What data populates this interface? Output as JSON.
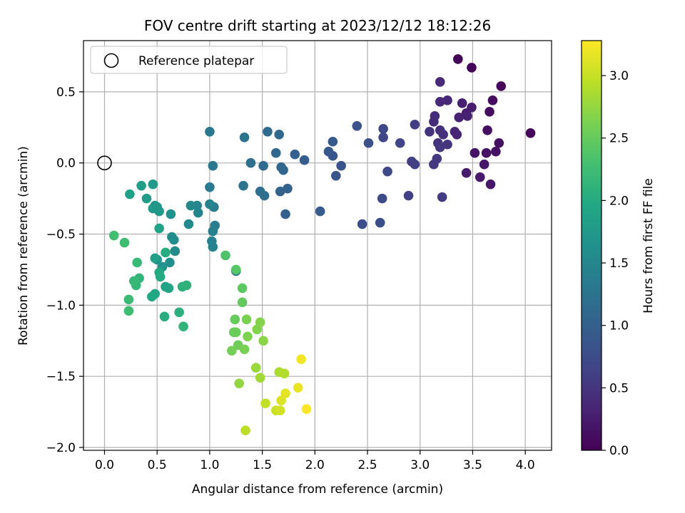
{
  "chart_data": {
    "type": "scatter",
    "title": "FOV centre drift starting at 2023/12/12 18:12:26",
    "xlabel": "Angular distance from reference (arcmin)",
    "ylabel": "Rotation from reference (arcmin)",
    "colorbar_label": "Hours from first FF file",
    "colormap": "viridis",
    "xlim": [
      -0.2,
      4.25
    ],
    "ylim": [
      -2.02,
      0.86
    ],
    "xticks": [
      "0.0",
      "0.5",
      "1.0",
      "1.5",
      "2.0",
      "2.5",
      "3.0",
      "3.5",
      "4.0"
    ],
    "xtick_values": [
      0,
      0.5,
      1,
      1.5,
      2,
      2.5,
      3,
      3.5,
      4
    ],
    "yticks": [
      "−2.0",
      "−1.5",
      "−1.0",
      "−0.5",
      "0.0",
      "0.5"
    ],
    "ytick_values": [
      -2,
      -1.5,
      -1,
      -0.5,
      0,
      0.5
    ],
    "cticks": [
      "0.0",
      "0.5",
      "1.0",
      "1.5",
      "2.0",
      "2.5",
      "3.0"
    ],
    "ctick_values": [
      0,
      0.5,
      1,
      1.5,
      2,
      2.5,
      3
    ],
    "clim": [
      0,
      3.28
    ],
    "grid": true,
    "legend": {
      "position": "top-left",
      "entries": [
        "Reference platepar"
      ]
    },
    "reference_point": {
      "x": 0,
      "y": 0
    },
    "points": [
      {
        "x": 3.36,
        "y": 0.73,
        "c": 0.02
      },
      {
        "x": 3.49,
        "y": 0.67,
        "c": 0.04
      },
      {
        "x": 4.05,
        "y": 0.21,
        "c": 0.05
      },
      {
        "x": 3.77,
        "y": 0.54,
        "c": 0.07
      },
      {
        "x": 3.69,
        "y": 0.44,
        "c": 0.09
      },
      {
        "x": 3.66,
        "y": 0.36,
        "c": 0.11
      },
      {
        "x": 3.64,
        "y": 0.23,
        "c": 0.12
      },
      {
        "x": 3.75,
        "y": 0.14,
        "c": 0.14
      },
      {
        "x": 3.72,
        "y": 0.08,
        "c": 0.15
      },
      {
        "x": 3.63,
        "y": 0.07,
        "c": 0.17
      },
      {
        "x": 3.52,
        "y": 0.07,
        "c": 0.18
      },
      {
        "x": 3.61,
        "y": -0.01,
        "c": 0.2
      },
      {
        "x": 3.67,
        "y": -0.15,
        "c": 0.21
      },
      {
        "x": 3.57,
        "y": -0.1,
        "c": 0.23
      },
      {
        "x": 3.44,
        "y": -0.07,
        "c": 0.24
      },
      {
        "x": 3.49,
        "y": 0.39,
        "c": 0.26
      },
      {
        "x": 3.44,
        "y": 0.35,
        "c": 0.27
      },
      {
        "x": 3.4,
        "y": 0.42,
        "c": 0.29
      },
      {
        "x": 3.45,
        "y": 0.33,
        "c": 0.3
      },
      {
        "x": 3.37,
        "y": 0.32,
        "c": 0.32
      },
      {
        "x": 3.35,
        "y": 0.2,
        "c": 0.33
      },
      {
        "x": 3.33,
        "y": 0.22,
        "c": 0.35
      },
      {
        "x": 3.26,
        "y": 0.44,
        "c": 0.36
      },
      {
        "x": 3.19,
        "y": 0.43,
        "c": 0.38
      },
      {
        "x": 3.19,
        "y": 0.57,
        "c": 0.39
      },
      {
        "x": 3.14,
        "y": 0.33,
        "c": 0.41
      },
      {
        "x": 3.13,
        "y": 0.29,
        "c": 0.42
      },
      {
        "x": 3.19,
        "y": 0.23,
        "c": 0.44
      },
      {
        "x": 3.22,
        "y": 0.2,
        "c": 0.45
      },
      {
        "x": 3.09,
        "y": 0.22,
        "c": 0.47
      },
      {
        "x": 3.17,
        "y": 0.14,
        "c": 0.48
      },
      {
        "x": 3.26,
        "y": 0.13,
        "c": 0.5
      },
      {
        "x": 3.19,
        "y": 0.11,
        "c": 0.51
      },
      {
        "x": 3.16,
        "y": 0.03,
        "c": 0.53
      },
      {
        "x": 3.13,
        "y": -0.01,
        "c": 0.54
      },
      {
        "x": 3.21,
        "y": -0.24,
        "c": 0.56
      },
      {
        "x": 2.95,
        "y": 0.27,
        "c": 0.58
      },
      {
        "x": 2.92,
        "y": 0.01,
        "c": 0.6
      },
      {
        "x": 2.95,
        "y": -0.01,
        "c": 0.62
      },
      {
        "x": 2.89,
        "y": -0.23,
        "c": 0.64
      },
      {
        "x": 2.81,
        "y": 0.14,
        "c": 0.66
      },
      {
        "x": 2.65,
        "y": 0.18,
        "c": 0.68
      },
      {
        "x": 2.65,
        "y": 0.24,
        "c": 0.7
      },
      {
        "x": 2.69,
        "y": -0.06,
        "c": 0.72
      },
      {
        "x": 2.64,
        "y": -0.25,
        "c": 0.74
      },
      {
        "x": 2.62,
        "y": -0.42,
        "c": 0.76
      },
      {
        "x": 2.45,
        "y": -0.43,
        "c": 0.78
      },
      {
        "x": 2.51,
        "y": 0.14,
        "c": 0.8
      },
      {
        "x": 2.4,
        "y": 0.26,
        "c": 0.82
      },
      {
        "x": 2.25,
        "y": -0.02,
        "c": 0.84
      },
      {
        "x": 2.2,
        "y": -0.09,
        "c": 0.86
      },
      {
        "x": 2.17,
        "y": 0.05,
        "c": 0.88
      },
      {
        "x": 2.13,
        "y": 0.08,
        "c": 0.9
      },
      {
        "x": 2.17,
        "y": 0.15,
        "c": 0.92
      },
      {
        "x": 2.05,
        "y": -0.34,
        "c": 0.94
      },
      {
        "x": 1.9,
        "y": 0.02,
        "c": 0.96
      },
      {
        "x": 1.81,
        "y": 0.06,
        "c": 0.98
      },
      {
        "x": 1.72,
        "y": -0.36,
        "c": 1.0
      },
      {
        "x": 1.74,
        "y": -0.18,
        "c": 1.02
      },
      {
        "x": 1.67,
        "y": -0.2,
        "c": 1.04
      },
      {
        "x": 1.7,
        "y": -0.05,
        "c": 1.06
      },
      {
        "x": 1.68,
        "y": -0.03,
        "c": 1.08
      },
      {
        "x": 1.66,
        "y": 0.2,
        "c": 1.1
      },
      {
        "x": 1.63,
        "y": 0.07,
        "c": 1.12
      },
      {
        "x": 1.55,
        "y": 0.22,
        "c": 1.14
      },
      {
        "x": 1.51,
        "y": -0.02,
        "c": 1.16
      },
      {
        "x": 1.52,
        "y": -0.23,
        "c": 1.18
      },
      {
        "x": 1.48,
        "y": -0.2,
        "c": 1.2
      },
      {
        "x": 1.39,
        "y": 0.0,
        "c": 1.22
      },
      {
        "x": 1.33,
        "y": 0.18,
        "c": 1.24
      },
      {
        "x": 1.32,
        "y": -0.16,
        "c": 1.26
      },
      {
        "x": 1.25,
        "y": -0.76,
        "c": 1.28
      },
      {
        "x": 1.03,
        "y": -0.02,
        "c": 1.3
      },
      {
        "x": 1.0,
        "y": 0.22,
        "c": 1.32
      },
      {
        "x": 1.0,
        "y": -0.17,
        "c": 1.34
      },
      {
        "x": 1.04,
        "y": -0.31,
        "c": 1.36
      },
      {
        "x": 1.05,
        "y": -0.44,
        "c": 1.38
      },
      {
        "x": 1.03,
        "y": -0.48,
        "c": 1.4
      },
      {
        "x": 1.02,
        "y": -0.55,
        "c": 1.42
      },
      {
        "x": 1.03,
        "y": -0.59,
        "c": 1.44
      },
      {
        "x": 1.0,
        "y": -0.29,
        "c": 1.46
      },
      {
        "x": 0.89,
        "y": -0.35,
        "c": 1.48
      },
      {
        "x": 0.88,
        "y": -0.3,
        "c": 1.5
      },
      {
        "x": 0.82,
        "y": -0.3,
        "c": 1.52
      },
      {
        "x": 0.8,
        "y": -0.43,
        "c": 1.54
      },
      {
        "x": 0.67,
        "y": -0.62,
        "c": 1.56
      },
      {
        "x": 0.66,
        "y": -0.54,
        "c": 1.58
      },
      {
        "x": 0.64,
        "y": -0.52,
        "c": 1.6
      },
      {
        "x": 0.62,
        "y": -0.7,
        "c": 1.62
      },
      {
        "x": 0.63,
        "y": -0.36,
        "c": 1.64
      },
      {
        "x": 0.55,
        "y": -0.73,
        "c": 1.66
      },
      {
        "x": 0.5,
        "y": -0.68,
        "c": 1.68
      },
      {
        "x": 0.5,
        "y": -0.31,
        "c": 1.7
      },
      {
        "x": 0.48,
        "y": -0.3,
        "c": 1.72
      },
      {
        "x": 0.46,
        "y": -0.32,
        "c": 1.74
      },
      {
        "x": 0.52,
        "y": -0.34,
        "c": 1.76
      },
      {
        "x": 0.46,
        "y": -0.15,
        "c": 1.78
      },
      {
        "x": 0.4,
        "y": -0.25,
        "c": 1.8
      },
      {
        "x": 0.35,
        "y": -0.16,
        "c": 1.82
      },
      {
        "x": 0.24,
        "y": -0.22,
        "c": 1.84
      },
      {
        "x": 0.48,
        "y": -0.67,
        "c": 1.86
      },
      {
        "x": 0.52,
        "y": -0.46,
        "c": 1.88
      },
      {
        "x": 0.58,
        "y": -0.87,
        "c": 1.9
      },
      {
        "x": 0.61,
        "y": -0.88,
        "c": 1.92
      },
      {
        "x": 0.48,
        "y": -0.92,
        "c": 1.94
      },
      {
        "x": 0.45,
        "y": -0.94,
        "c": 1.96
      },
      {
        "x": 0.52,
        "y": -0.77,
        "c": 1.98
      },
      {
        "x": 0.53,
        "y": -0.8,
        "c": 2.0
      },
      {
        "x": 0.58,
        "y": -0.63,
        "c": 2.02
      },
      {
        "x": 0.57,
        "y": -1.08,
        "c": 2.04
      },
      {
        "x": 0.71,
        "y": -1.05,
        "c": 2.06
      },
      {
        "x": 0.74,
        "y": -0.87,
        "c": 2.08
      },
      {
        "x": 0.78,
        "y": -0.86,
        "c": 2.1
      },
      {
        "x": 0.75,
        "y": -1.15,
        "c": 2.12
      },
      {
        "x": 0.33,
        "y": -0.81,
        "c": 2.14
      },
      {
        "x": 0.3,
        "y": -0.86,
        "c": 2.16
      },
      {
        "x": 0.28,
        "y": -0.83,
        "c": 2.18
      },
      {
        "x": 0.31,
        "y": -0.7,
        "c": 2.2
      },
      {
        "x": 0.23,
        "y": -0.96,
        "c": 2.22
      },
      {
        "x": 0.23,
        "y": -1.04,
        "c": 2.24
      },
      {
        "x": 0.19,
        "y": -0.56,
        "c": 2.26
      },
      {
        "x": 0.09,
        "y": -0.51,
        "c": 2.28
      },
      {
        "x": 1.15,
        "y": -0.65,
        "c": 2.35
      },
      {
        "x": 1.25,
        "y": -0.75,
        "c": 2.4
      },
      {
        "x": 1.31,
        "y": -0.88,
        "c": 2.45
      },
      {
        "x": 1.31,
        "y": -0.98,
        "c": 2.48
      },
      {
        "x": 1.24,
        "y": -1.1,
        "c": 2.5
      },
      {
        "x": 1.23,
        "y": -1.19,
        "c": 2.52
      },
      {
        "x": 1.25,
        "y": -1.19,
        "c": 2.54
      },
      {
        "x": 1.27,
        "y": -1.28,
        "c": 2.56
      },
      {
        "x": 1.21,
        "y": -1.32,
        "c": 2.58
      },
      {
        "x": 1.33,
        "y": -1.31,
        "c": 2.6
      },
      {
        "x": 1.35,
        "y": -1.1,
        "c": 2.62
      },
      {
        "x": 1.36,
        "y": -1.22,
        "c": 2.64
      },
      {
        "x": 1.45,
        "y": -1.17,
        "c": 2.66
      },
      {
        "x": 1.48,
        "y": -1.12,
        "c": 2.68
      },
      {
        "x": 1.51,
        "y": -1.25,
        "c": 2.7
      },
      {
        "x": 1.28,
        "y": -1.55,
        "c": 2.74
      },
      {
        "x": 1.44,
        "y": -1.44,
        "c": 2.78
      },
      {
        "x": 1.48,
        "y": -1.51,
        "c": 2.82
      },
      {
        "x": 1.66,
        "y": -1.47,
        "c": 2.86
      },
      {
        "x": 1.71,
        "y": -1.48,
        "c": 2.9
      },
      {
        "x": 1.34,
        "y": -1.88,
        "c": 2.94
      },
      {
        "x": 1.53,
        "y": -1.69,
        "c": 2.98
      },
      {
        "x": 1.63,
        "y": -1.74,
        "c": 3.02
      },
      {
        "x": 1.67,
        "y": -1.74,
        "c": 3.06
      },
      {
        "x": 1.68,
        "y": -1.67,
        "c": 3.1
      },
      {
        "x": 1.72,
        "y": -1.62,
        "c": 3.14
      },
      {
        "x": 1.84,
        "y": -1.58,
        "c": 3.18
      },
      {
        "x": 1.87,
        "y": -1.38,
        "c": 3.22
      },
      {
        "x": 1.92,
        "y": -1.73,
        "c": 3.26
      }
    ]
  }
}
